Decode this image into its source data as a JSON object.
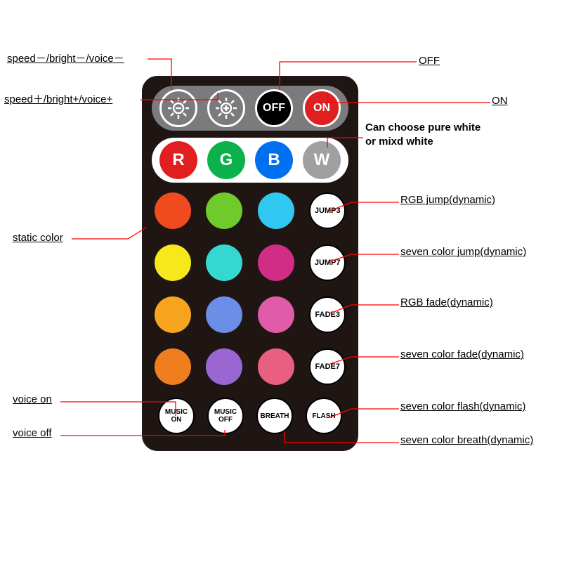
{
  "annotations": {
    "speed_minus": "speed－/bright－/voice－",
    "speed_plus": "speed＋/bright+/voice+",
    "off": "OFF",
    "on": "ON",
    "white_note": "Can choose pure white\nor mixd white",
    "static_color": "static color",
    "jump3": "RGB jump(dynamic)",
    "jump7": "seven color jump(dynamic)",
    "fade3": "RGB fade(dynamic)",
    "fade7": "seven color fade(dynamic)",
    "flash": "seven color flash(dynamic)",
    "breath": "seven color breath(dynamic)",
    "voice_on": "voice on",
    "voice_off": "voice off"
  },
  "top_row": {
    "off_label": "OFF",
    "on_label": "ON"
  },
  "rgbw": {
    "R": {
      "letter": "R",
      "color": "#e02020"
    },
    "G": {
      "letter": "G",
      "color": "#0bb14b"
    },
    "B": {
      "letter": "B",
      "color": "#0070f0"
    },
    "W": {
      "letter": "W",
      "color": "#9ea0a2"
    }
  },
  "color_swatches": [
    [
      "#f04a1e",
      "#6ecb2b",
      "#30c8f0"
    ],
    [
      "#f7e81b",
      "#35d7d2",
      "#d12c86"
    ],
    [
      "#f7a51e",
      "#6b8fe6",
      "#e05ba8"
    ],
    [
      "#f07e1e",
      "#9a66d4",
      "#e85f82"
    ]
  ],
  "mode_buttons": {
    "jump3": "JUMP3",
    "jump7": "JUMP7",
    "fade3": "FADE3",
    "fade7": "FADE7"
  },
  "bottom_buttons": {
    "music_on": "MUSIC\nON",
    "music_off": "MUSIC\nOFF",
    "breath": "BREATH",
    "flash": "FLASH"
  },
  "styling": {
    "leader_color": "#ff0000",
    "remote_bg": "#1f1614",
    "panel_bg": "#7b7b7e",
    "label_fontsize": 15
  }
}
